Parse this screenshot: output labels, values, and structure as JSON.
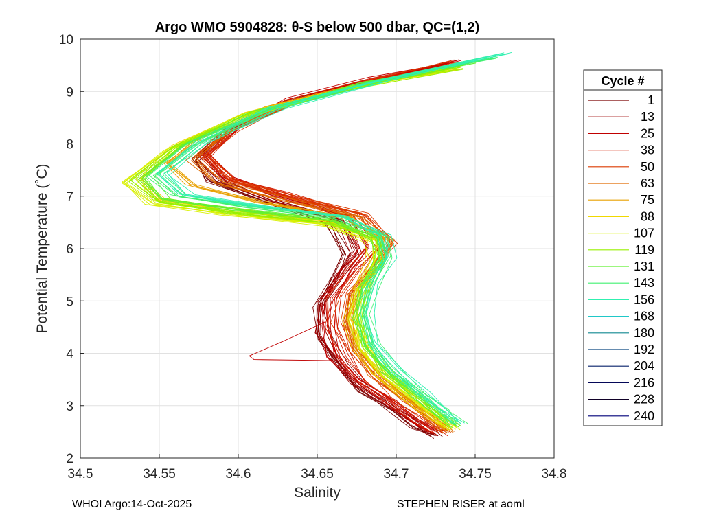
{
  "chart_data": {
    "type": "line",
    "title": "Argo WMO 5904828: θ-S below 500 dbar,  QC=(1,2)",
    "xlabel": "Salinity",
    "ylabel": "Potential Temperature (˚C)",
    "xlim": [
      34.5,
      34.8
    ],
    "ylim": [
      2,
      10
    ],
    "xticks": [
      "34.5",
      "34.55",
      "34.6",
      "34.65",
      "34.7",
      "34.75",
      "34.8"
    ],
    "yticks": [
      "2",
      "3",
      "4",
      "5",
      "6",
      "7",
      "8",
      "9",
      "10"
    ],
    "grid": true,
    "legend": {
      "title": "Cycle #",
      "position": "right",
      "entries": [
        "1",
        "13",
        "25",
        "38",
        "50",
        "63",
        "75",
        "88",
        "107",
        "119",
        "131",
        "143",
        "156",
        "168",
        "180",
        "192",
        "204",
        "216",
        "228",
        "240"
      ],
      "colors": [
        "#7a0000",
        "#9b0000",
        "#c00000",
        "#d41c00",
        "#dc3a00",
        "#e06a00",
        "#e8a000",
        "#f0d800",
        "#d8f000",
        "#98f000",
        "#60f030",
        "#40f070",
        "#30f0b0",
        "#20c8c8",
        "#108890",
        "#0a4880",
        "#06206a",
        "#040858",
        "#100028",
        "#00007a"
      ]
    },
    "series": [
      {
        "name": "1",
        "color": "#7a0000",
        "points": [
          [
            34.726,
            2.4
          ],
          [
            34.715,
            2.6
          ],
          [
            34.7,
            2.9
          ],
          [
            34.68,
            3.3
          ],
          [
            34.665,
            3.8
          ],
          [
            34.655,
            4.3
          ],
          [
            34.653,
            4.9
          ],
          [
            34.665,
            5.5
          ],
          [
            34.672,
            5.9
          ],
          [
            34.66,
            6.5
          ],
          [
            34.62,
            6.9
          ],
          [
            34.585,
            7.3
          ],
          [
            34.574,
            7.7
          ],
          [
            34.592,
            8.2
          ],
          [
            34.63,
            8.75
          ],
          [
            34.68,
            9.15
          ],
          [
            34.73,
            9.5
          ]
        ]
      },
      {
        "name": "13",
        "color": "#9b0000",
        "points": [
          [
            34.725,
            2.45
          ],
          [
            34.712,
            2.7
          ],
          [
            34.696,
            3.0
          ],
          [
            34.676,
            3.4
          ],
          [
            34.662,
            3.9
          ],
          [
            34.652,
            4.4
          ],
          [
            34.652,
            5.0
          ],
          [
            34.664,
            5.5
          ],
          [
            34.675,
            5.95
          ],
          [
            34.664,
            6.55
          ],
          [
            34.622,
            6.95
          ],
          [
            34.59,
            7.3
          ],
          [
            34.576,
            7.75
          ],
          [
            34.595,
            8.25
          ],
          [
            34.632,
            8.8
          ],
          [
            34.684,
            9.2
          ],
          [
            34.735,
            9.55
          ]
        ]
      },
      {
        "name": "25",
        "color": "#c00000",
        "points": [
          [
            34.724,
            2.5
          ],
          [
            34.71,
            2.75
          ],
          [
            34.694,
            3.1
          ],
          [
            34.673,
            3.5
          ],
          [
            34.66,
            3.95
          ],
          [
            34.656,
            4.5
          ],
          [
            34.656,
            5.05
          ],
          [
            34.668,
            5.55
          ],
          [
            34.68,
            6.0
          ],
          [
            34.668,
            6.6
          ],
          [
            34.625,
            7.0
          ],
          [
            34.592,
            7.35
          ],
          [
            34.578,
            7.8
          ],
          [
            34.597,
            8.3
          ],
          [
            34.634,
            8.85
          ],
          [
            34.686,
            9.25
          ],
          [
            34.737,
            9.58
          ]
        ]
      },
      {
        "name": "38",
        "color": "#d41c00",
        "points": [
          [
            34.728,
            2.45
          ],
          [
            34.716,
            2.7
          ],
          [
            34.7,
            3.05
          ],
          [
            34.68,
            3.45
          ],
          [
            34.666,
            3.95
          ],
          [
            34.658,
            4.5
          ],
          [
            34.66,
            5.05
          ],
          [
            34.674,
            5.6
          ],
          [
            34.688,
            6.05
          ],
          [
            34.674,
            6.65
          ],
          [
            34.628,
            7.05
          ],
          [
            34.595,
            7.35
          ],
          [
            34.58,
            7.8
          ],
          [
            34.598,
            8.3
          ],
          [
            34.636,
            8.85
          ],
          [
            34.69,
            9.25
          ],
          [
            34.74,
            9.58
          ]
        ]
      },
      {
        "name": "50",
        "color": "#dc3a00",
        "points": [
          [
            34.73,
            2.5
          ],
          [
            34.718,
            2.75
          ],
          [
            34.703,
            3.1
          ],
          [
            34.684,
            3.55
          ],
          [
            34.67,
            4.05
          ],
          [
            34.664,
            4.6
          ],
          [
            34.668,
            5.15
          ],
          [
            34.684,
            5.7
          ],
          [
            34.695,
            6.1
          ],
          [
            34.678,
            6.65
          ],
          [
            34.63,
            7.0
          ],
          [
            34.593,
            7.3
          ],
          [
            34.576,
            7.75
          ],
          [
            34.594,
            8.25
          ],
          [
            34.633,
            8.8
          ],
          [
            34.688,
            9.2
          ],
          [
            34.74,
            9.55
          ]
        ]
      },
      {
        "name": "63",
        "color": "#e06a00",
        "points": [
          [
            34.731,
            2.5
          ],
          [
            34.72,
            2.75
          ],
          [
            34.705,
            3.1
          ],
          [
            34.686,
            3.55
          ],
          [
            34.672,
            4.05
          ],
          [
            34.667,
            4.6
          ],
          [
            34.672,
            5.15
          ],
          [
            34.686,
            5.7
          ],
          [
            34.694,
            6.15
          ],
          [
            34.674,
            6.6
          ],
          [
            34.624,
            6.95
          ],
          [
            34.585,
            7.25
          ],
          [
            34.568,
            7.7
          ],
          [
            34.588,
            8.2
          ],
          [
            34.628,
            8.75
          ],
          [
            34.686,
            9.2
          ],
          [
            34.742,
            9.55
          ]
        ]
      },
      {
        "name": "75",
        "color": "#e8a000",
        "points": [
          [
            34.732,
            2.55
          ],
          [
            34.721,
            2.8
          ],
          [
            34.707,
            3.15
          ],
          [
            34.688,
            3.6
          ],
          [
            34.675,
            4.1
          ],
          [
            34.67,
            4.65
          ],
          [
            34.674,
            5.2
          ],
          [
            34.688,
            5.75
          ],
          [
            34.692,
            6.2
          ],
          [
            34.668,
            6.6
          ],
          [
            34.612,
            6.9
          ],
          [
            34.57,
            7.2
          ],
          [
            34.555,
            7.65
          ],
          [
            34.576,
            8.15
          ],
          [
            34.62,
            8.7
          ],
          [
            34.68,
            9.15
          ],
          [
            34.74,
            9.5
          ]
        ]
      },
      {
        "name": "88",
        "color": "#f0d800",
        "points": [
          [
            34.733,
            2.55
          ],
          [
            34.722,
            2.8
          ],
          [
            34.708,
            3.15
          ],
          [
            34.69,
            3.6
          ],
          [
            34.677,
            4.1
          ],
          [
            34.672,
            4.65
          ],
          [
            34.676,
            5.2
          ],
          [
            34.686,
            5.75
          ],
          [
            34.684,
            6.15
          ],
          [
            34.656,
            6.5
          ],
          [
            34.596,
            6.75
          ],
          [
            34.55,
            6.95
          ],
          [
            34.536,
            7.35
          ],
          [
            34.56,
            7.95
          ],
          [
            34.608,
            8.6
          ],
          [
            34.672,
            9.1
          ],
          [
            34.736,
            9.45
          ]
        ]
      },
      {
        "name": "107",
        "color": "#d8f000",
        "points": [
          [
            34.735,
            2.55
          ],
          [
            34.724,
            2.8
          ],
          [
            34.71,
            3.15
          ],
          [
            34.692,
            3.6
          ],
          [
            34.679,
            4.1
          ],
          [
            34.674,
            4.65
          ],
          [
            34.678,
            5.2
          ],
          [
            34.688,
            5.75
          ],
          [
            34.686,
            6.15
          ],
          [
            34.655,
            6.45
          ],
          [
            34.594,
            6.65
          ],
          [
            34.546,
            6.85
          ],
          [
            34.53,
            7.25
          ],
          [
            34.556,
            7.9
          ],
          [
            34.604,
            8.55
          ],
          [
            34.668,
            9.05
          ],
          [
            34.732,
            9.4
          ]
        ]
      },
      {
        "name": "119",
        "color": "#98f000",
        "points": [
          [
            34.737,
            2.6
          ],
          [
            34.726,
            2.85
          ],
          [
            34.712,
            3.2
          ],
          [
            34.694,
            3.65
          ],
          [
            34.681,
            4.15
          ],
          [
            34.676,
            4.7
          ],
          [
            34.68,
            5.25
          ],
          [
            34.69,
            5.8
          ],
          [
            34.687,
            6.2
          ],
          [
            34.656,
            6.5
          ],
          [
            34.596,
            6.7
          ],
          [
            34.55,
            6.9
          ],
          [
            34.534,
            7.3
          ],
          [
            34.56,
            7.95
          ],
          [
            34.608,
            8.6
          ],
          [
            34.674,
            9.1
          ],
          [
            34.74,
            9.45
          ]
        ]
      },
      {
        "name": "131",
        "color": "#60f030",
        "points": [
          [
            34.739,
            2.6
          ],
          [
            34.728,
            2.85
          ],
          [
            34.714,
            3.2
          ],
          [
            34.696,
            3.65
          ],
          [
            34.683,
            4.15
          ],
          [
            34.678,
            4.7
          ],
          [
            34.682,
            5.25
          ],
          [
            34.692,
            5.8
          ],
          [
            34.69,
            6.2
          ],
          [
            34.66,
            6.55
          ],
          [
            34.6,
            6.75
          ],
          [
            34.556,
            6.95
          ],
          [
            34.542,
            7.35
          ],
          [
            34.566,
            7.95
          ],
          [
            34.614,
            8.6
          ],
          [
            34.682,
            9.15
          ],
          [
            34.75,
            9.55
          ]
        ]
      },
      {
        "name": "143",
        "color": "#40f070",
        "points": [
          [
            34.74,
            2.65
          ],
          [
            34.73,
            2.9
          ],
          [
            34.716,
            3.25
          ],
          [
            34.698,
            3.7
          ],
          [
            34.685,
            4.2
          ],
          [
            34.68,
            4.75
          ],
          [
            34.684,
            5.3
          ],
          [
            34.694,
            5.85
          ],
          [
            34.692,
            6.25
          ],
          [
            34.664,
            6.6
          ],
          [
            34.606,
            6.8
          ],
          [
            34.562,
            7.0
          ],
          [
            34.548,
            7.4
          ],
          [
            34.572,
            8.0
          ],
          [
            34.62,
            8.65
          ],
          [
            34.69,
            9.2
          ],
          [
            34.762,
            9.65
          ]
        ]
      },
      {
        "name": "156",
        "color": "#30f0b0",
        "points": [
          [
            34.74,
            2.65
          ],
          [
            34.73,
            2.9
          ],
          [
            34.716,
            3.25
          ],
          [
            34.698,
            3.7
          ],
          [
            34.685,
            4.2
          ],
          [
            34.68,
            4.75
          ],
          [
            34.684,
            5.3
          ],
          [
            34.694,
            5.85
          ],
          [
            34.692,
            6.25
          ],
          [
            34.666,
            6.62
          ],
          [
            34.61,
            6.82
          ],
          [
            34.566,
            7.02
          ],
          [
            34.552,
            7.42
          ],
          [
            34.576,
            8.02
          ],
          [
            34.624,
            8.68
          ],
          [
            34.694,
            9.24
          ],
          [
            34.768,
            9.72
          ]
        ]
      },
      {
        "name": "168",
        "color": "#20c8c8",
        "points": []
      },
      {
        "name": "180",
        "color": "#108890",
        "points": []
      },
      {
        "name": "192",
        "color": "#0a4880",
        "points": []
      },
      {
        "name": "204",
        "color": "#06206a",
        "points": []
      },
      {
        "name": "216",
        "color": "#040858",
        "points": []
      },
      {
        "name": "228",
        "color": "#100028",
        "points": []
      },
      {
        "name": "240",
        "color": "#00007a",
        "points": []
      }
    ],
    "annotations": [
      {
        "name": "anomaly-loop-cycle-1",
        "color": "#c00000",
        "points": [
          [
            34.655,
            4.6
          ],
          [
            34.63,
            4.25
          ],
          [
            34.607,
            3.95
          ],
          [
            34.61,
            3.88
          ],
          [
            34.665,
            3.86
          ],
          [
            34.66,
            4.1
          ]
        ]
      }
    ]
  },
  "footer": {
    "left": "WHOI Argo:14-Oct-2025",
    "right": "STEPHEN RISER at aoml"
  }
}
